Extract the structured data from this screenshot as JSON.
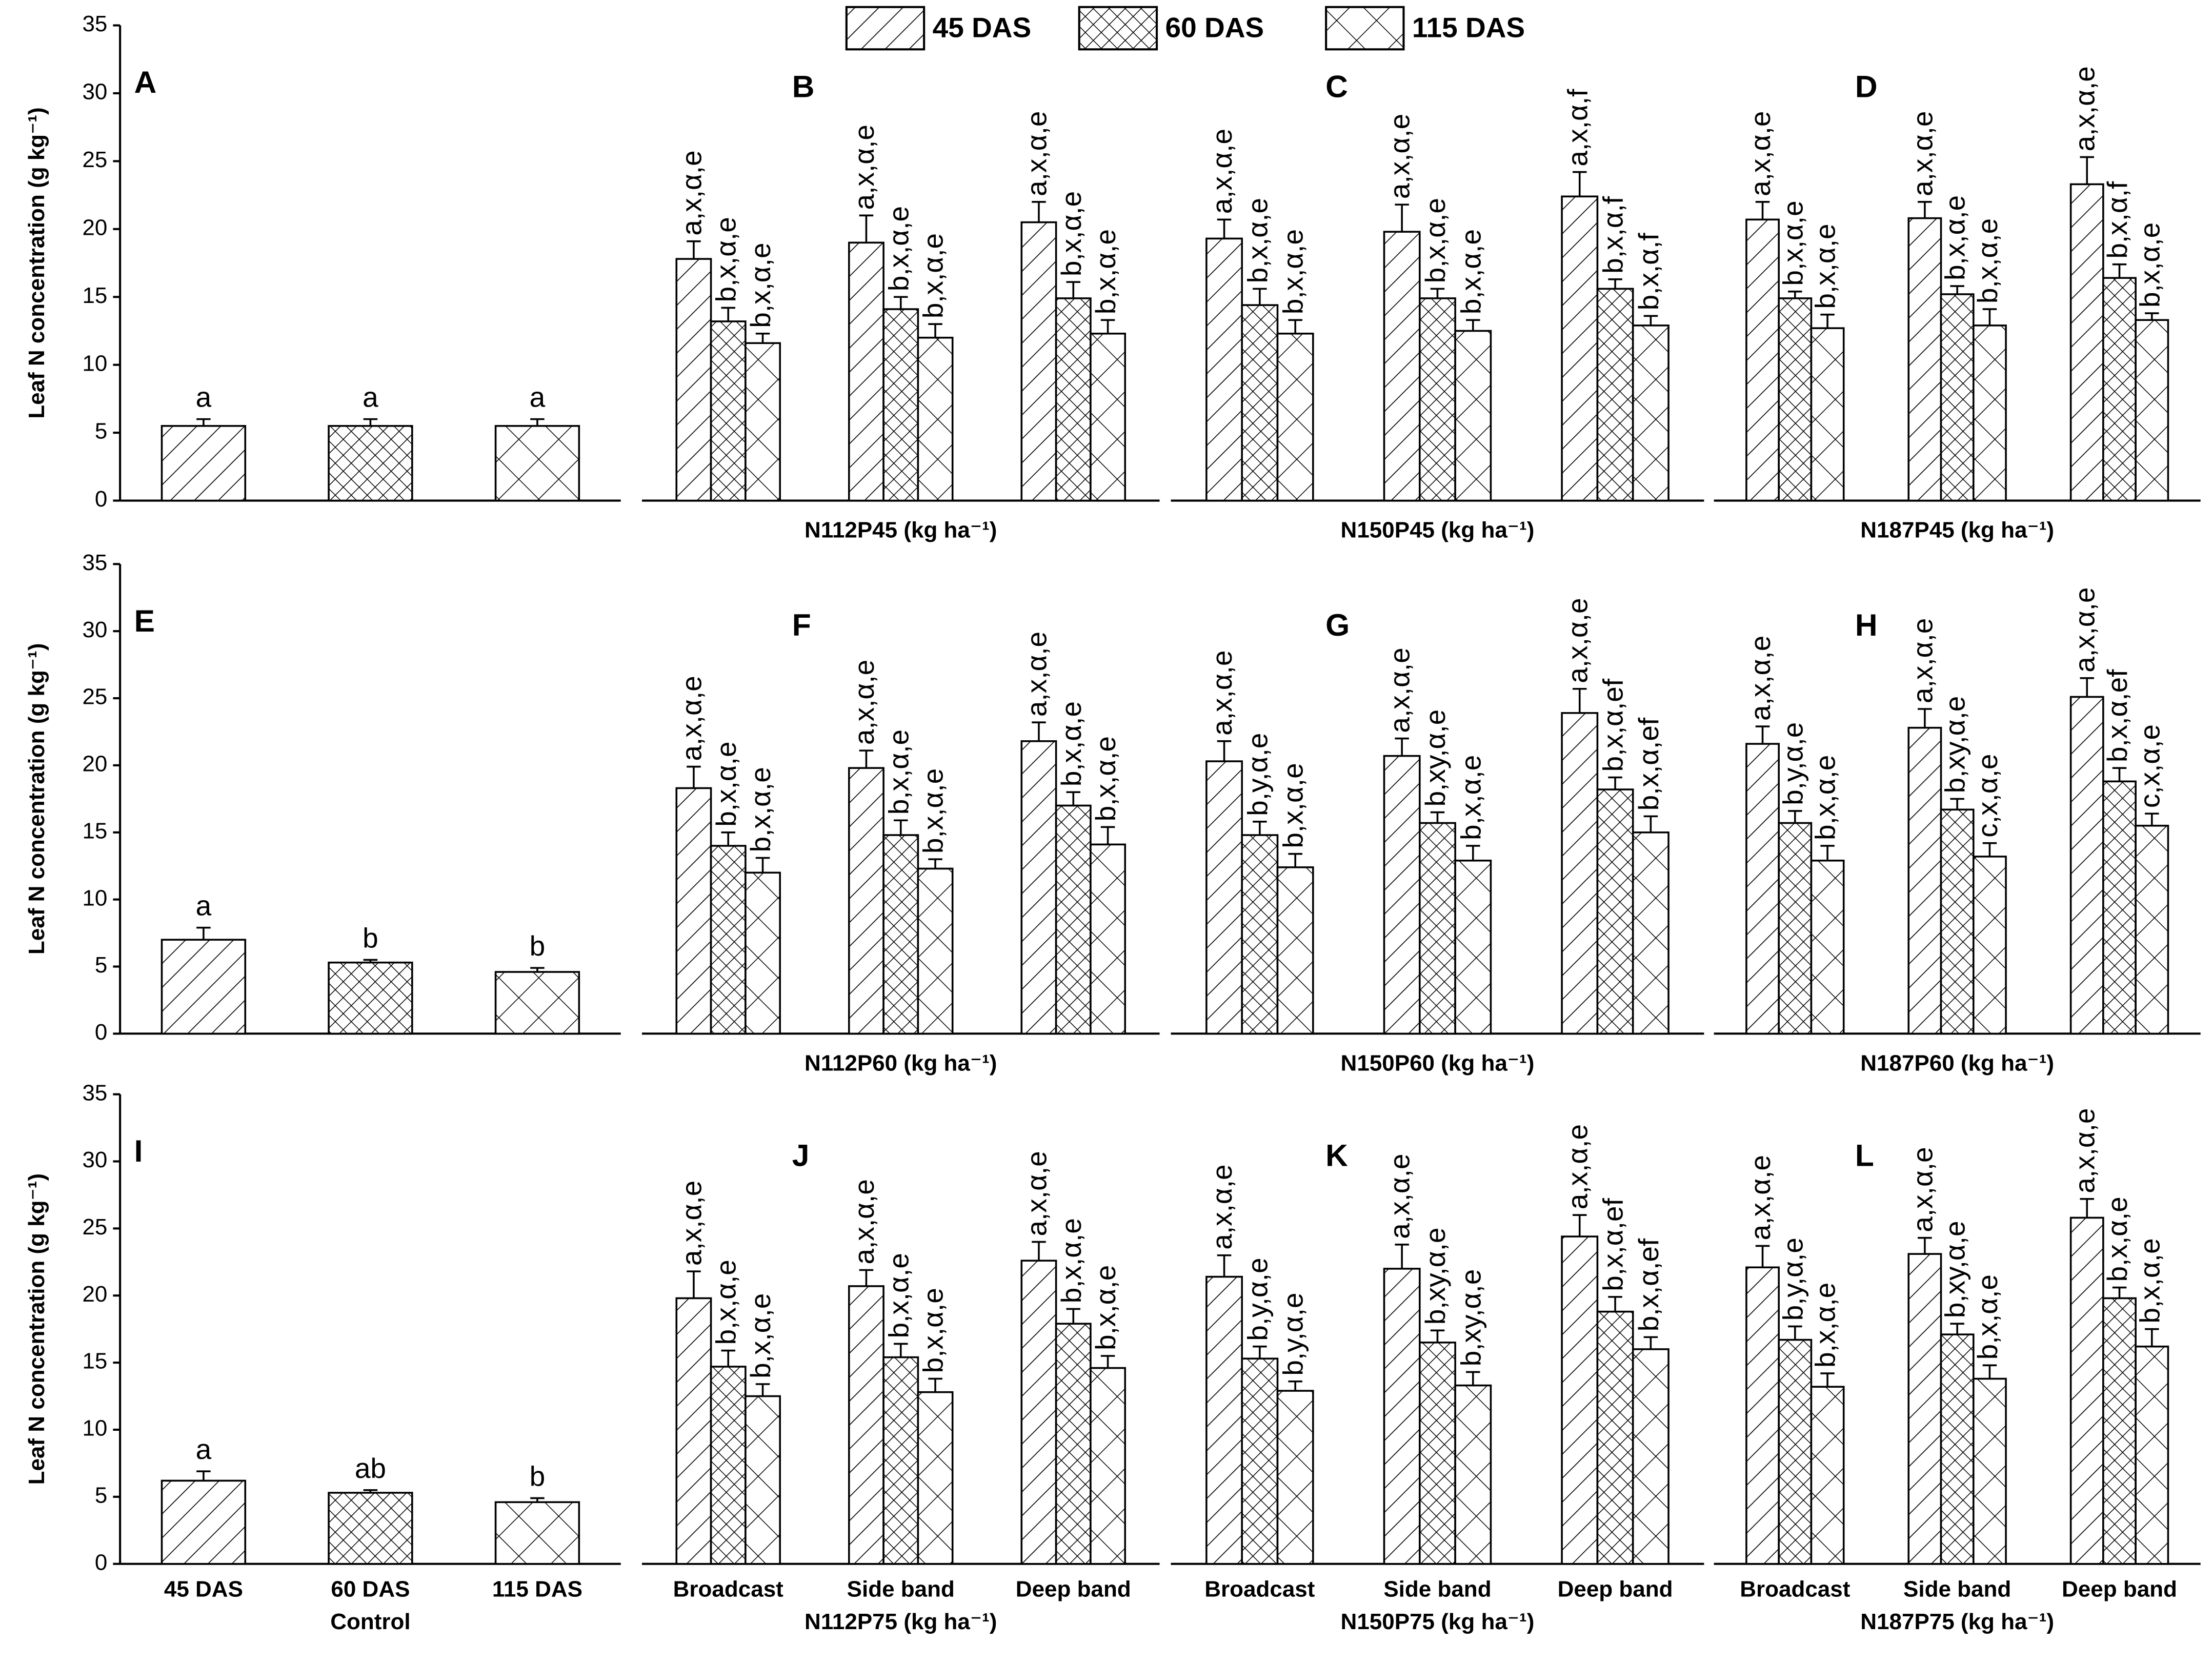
{
  "legend": [
    {
      "name": "45 DAS",
      "pattern": "diagonal"
    },
    {
      "name": "60 DAS",
      "pattern": "crosshatch"
    },
    {
      "name": "115 DAS",
      "pattern": "cross"
    }
  ],
  "chart_data": [
    {
      "type": "bar",
      "panel": "A",
      "ylabel": "Leaf N concentration (g kg⁻¹)",
      "categories": [
        null,
        null,
        null
      ],
      "values": [
        5.5,
        5.5,
        5.5
      ],
      "errors": [
        0.5,
        0.5,
        0.5
      ],
      "patterns": [
        "diagonal",
        "crosshatch",
        "cross"
      ],
      "significance": [
        "a",
        "a",
        "a"
      ],
      "ylim": [
        0,
        35
      ],
      "yticks": [
        0,
        5,
        10,
        15,
        20,
        25,
        30,
        35
      ]
    },
    {
      "type": "grouped_bar",
      "panel": "B",
      "xlabel": "N112P45 (kg ha⁻¹)",
      "categories": [
        null,
        null,
        null
      ],
      "ylim": [
        0,
        35
      ],
      "series": [
        {
          "pattern": "diagonal",
          "values": [
            17.8,
            19.0,
            20.5
          ],
          "errors": [
            1.3,
            2.0,
            1.5
          ],
          "significance": [
            "a,x,α,e",
            "a,x,α,e",
            "a,x,α,e"
          ]
        },
        {
          "pattern": "crosshatch",
          "values": [
            13.2,
            14.1,
            14.9
          ],
          "errors": [
            1.0,
            0.9,
            1.2
          ],
          "significance": [
            "b,x,α,e",
            "b,x,α,e",
            "b,x,α,e"
          ]
        },
        {
          "pattern": "cross",
          "values": [
            11.6,
            12.0,
            12.3
          ],
          "errors": [
            0.7,
            1.0,
            1.0
          ],
          "significance": [
            "b,x,α,e",
            "b,x,α,e",
            "b,x,α,e"
          ]
        }
      ]
    },
    {
      "type": "grouped_bar",
      "panel": "C",
      "xlabel": "N150P45 (kg ha⁻¹)",
      "categories": [
        null,
        null,
        null
      ],
      "ylim": [
        0,
        35
      ],
      "series": [
        {
          "pattern": "diagonal",
          "values": [
            19.3,
            19.8,
            22.4
          ],
          "errors": [
            1.4,
            2.0,
            1.8
          ],
          "significance": [
            "a,x,α,e",
            "a,x,α,e",
            "a,x,α,f"
          ]
        },
        {
          "pattern": "crosshatch",
          "values": [
            14.4,
            14.9,
            15.6
          ],
          "errors": [
            1.2,
            0.7,
            0.7
          ],
          "significance": [
            "b,x,α,e",
            "b,x,α,e",
            "b,x,α,f"
          ]
        },
        {
          "pattern": "cross",
          "values": [
            12.3,
            12.5,
            12.9
          ],
          "errors": [
            1.0,
            0.8,
            0.7
          ],
          "significance": [
            "b,x,α,e",
            "b,x,α,e",
            "b,x,α,f"
          ]
        }
      ]
    },
    {
      "type": "grouped_bar",
      "panel": "D",
      "xlabel": "N187P45 (kg ha⁻¹)",
      "categories": [
        null,
        null,
        null
      ],
      "ylim": [
        0,
        35
      ],
      "series": [
        {
          "pattern": "diagonal",
          "values": [
            20.7,
            20.8,
            23.3
          ],
          "errors": [
            1.3,
            1.2,
            2.0
          ],
          "significance": [
            "a,x,α,e",
            "a,x,α,e",
            "a,x,α,e"
          ]
        },
        {
          "pattern": "crosshatch",
          "values": [
            14.9,
            15.2,
            16.4
          ],
          "errors": [
            0.5,
            0.6,
            1.0
          ],
          "significance": [
            "b,x,α,e",
            "b,x,α,e",
            "b,x,α,f"
          ]
        },
        {
          "pattern": "cross",
          "values": [
            12.7,
            12.9,
            13.3
          ],
          "errors": [
            1.0,
            1.2,
            0.5
          ],
          "significance": [
            "b,x,α,e",
            "b,x,α,e",
            "b,x,α,e"
          ]
        }
      ]
    },
    {
      "type": "bar",
      "panel": "E",
      "ylabel": "Leaf N concentration (g kg⁻¹)",
      "categories": [
        null,
        null,
        null
      ],
      "values": [
        7.0,
        5.3,
        4.6
      ],
      "errors": [
        0.9,
        0.2,
        0.3
      ],
      "patterns": [
        "diagonal",
        "crosshatch",
        "cross"
      ],
      "significance": [
        "a",
        "b",
        "b"
      ],
      "ylim": [
        0,
        35
      ],
      "yticks": [
        0,
        5,
        10,
        15,
        20,
        25,
        30,
        35
      ]
    },
    {
      "type": "grouped_bar",
      "panel": "F",
      "xlabel": "N112P60 (kg ha⁻¹)",
      "categories": [
        null,
        null,
        null
      ],
      "ylim": [
        0,
        35
      ],
      "series": [
        {
          "pattern": "diagonal",
          "values": [
            18.3,
            19.8,
            21.8
          ],
          "errors": [
            1.6,
            1.3,
            1.4
          ],
          "significance": [
            "a,x,α,e",
            "a,x,α,e",
            "a,x,α,e"
          ]
        },
        {
          "pattern": "crosshatch",
          "values": [
            14.0,
            14.8,
            17.0
          ],
          "errors": [
            1.0,
            1.1,
            1.0
          ],
          "significance": [
            "b,x,α,e",
            "b,x,α,e",
            "b,x,α,e"
          ]
        },
        {
          "pattern": "cross",
          "values": [
            12.0,
            12.3,
            14.1
          ],
          "errors": [
            1.1,
            0.7,
            1.3
          ],
          "significance": [
            "b,x,α,e",
            "b,x,α,e",
            "b,x,α,e"
          ]
        }
      ]
    },
    {
      "type": "grouped_bar",
      "panel": "G",
      "xlabel": "N150P60 (kg ha⁻¹)",
      "categories": [
        null,
        null,
        null
      ],
      "ylim": [
        0,
        35
      ],
      "series": [
        {
          "pattern": "diagonal",
          "values": [
            20.3,
            20.7,
            23.9
          ],
          "errors": [
            1.5,
            1.3,
            1.8
          ],
          "significance": [
            "a,x,α,e",
            "a,x,α,e",
            "a,x,α,e"
          ]
        },
        {
          "pattern": "crosshatch",
          "values": [
            14.8,
            15.7,
            18.2
          ],
          "errors": [
            1.0,
            0.8,
            0.9
          ],
          "significance": [
            "b,y,α,e",
            "b,xy,α,e",
            "b,x,α,ef"
          ]
        },
        {
          "pattern": "cross",
          "values": [
            12.4,
            12.9,
            15.0
          ],
          "errors": [
            1.0,
            1.1,
            1.2
          ],
          "significance": [
            "b,x,α,e",
            "b,x,α,e",
            "b,x,α,ef"
          ]
        }
      ]
    },
    {
      "type": "grouped_bar",
      "panel": "H",
      "xlabel": "N187P60 (kg ha⁻¹)",
      "categories": [
        null,
        null,
        null
      ],
      "ylim": [
        0,
        35
      ],
      "series": [
        {
          "pattern": "diagonal",
          "values": [
            21.6,
            22.8,
            25.1
          ],
          "errors": [
            1.3,
            1.4,
            1.4
          ],
          "significance": [
            "a,x,α,e",
            "a,x,α,e",
            "a,x,α,e"
          ]
        },
        {
          "pattern": "crosshatch",
          "values": [
            15.7,
            16.7,
            18.8
          ],
          "errors": [
            0.9,
            0.8,
            1.0
          ],
          "significance": [
            "b,y,α,e",
            "b,xy,α,e",
            "b,x,α,ef"
          ]
        },
        {
          "pattern": "cross",
          "values": [
            12.9,
            13.2,
            15.5
          ],
          "errors": [
            1.1,
            1.0,
            0.9
          ],
          "significance": [
            "b,x,α,e",
            "c,x,α,e",
            "c,x,α,e"
          ]
        }
      ]
    },
    {
      "type": "bar",
      "panel": "I",
      "ylabel": "Leaf N concentration (g kg⁻¹)",
      "xlabel": "Control",
      "categories": [
        "45 DAS",
        "60 DAS",
        "115 DAS"
      ],
      "values": [
        6.2,
        5.3,
        4.6
      ],
      "errors": [
        0.7,
        0.2,
        0.3
      ],
      "patterns": [
        "diagonal",
        "crosshatch",
        "cross"
      ],
      "significance": [
        "a",
        "ab",
        "b"
      ],
      "ylim": [
        0,
        35
      ],
      "yticks": [
        0,
        5,
        10,
        15,
        20,
        25,
        30,
        35
      ]
    },
    {
      "type": "grouped_bar",
      "panel": "J",
      "xlabel": "N112P75 (kg ha⁻¹)",
      "categories": [
        "Broadcast",
        "Side band",
        "Deep band"
      ],
      "ylim": [
        0,
        35
      ],
      "series": [
        {
          "pattern": "diagonal",
          "values": [
            19.8,
            20.7,
            22.6
          ],
          "errors": [
            2.0,
            1.2,
            1.4
          ],
          "significance": [
            "a,x,α,e",
            "a,x,α,e",
            "a,x,α,e"
          ]
        },
        {
          "pattern": "crosshatch",
          "values": [
            14.7,
            15.4,
            17.9
          ],
          "errors": [
            1.2,
            1.0,
            1.1
          ],
          "significance": [
            "b,x,α,e",
            "b,x,α,e",
            "b,x,α,e"
          ]
        },
        {
          "pattern": "cross",
          "values": [
            12.5,
            12.8,
            14.6
          ],
          "errors": [
            0.9,
            1.0,
            0.9
          ],
          "significance": [
            "b,x,α,e",
            "b,x,α,e",
            "b,x,α,e"
          ]
        }
      ]
    },
    {
      "type": "grouped_bar",
      "panel": "K",
      "xlabel": "N150P75 (kg ha⁻¹)",
      "categories": [
        "Broadcast",
        "Side band",
        "Deep band"
      ],
      "ylim": [
        0,
        35
      ],
      "series": [
        {
          "pattern": "diagonal",
          "values": [
            21.4,
            22.0,
            24.4
          ],
          "errors": [
            1.6,
            1.8,
            1.6
          ],
          "significance": [
            "a,x,α,e",
            "a,x,α,e",
            "a,x,α,e"
          ]
        },
        {
          "pattern": "crosshatch",
          "values": [
            15.3,
            16.5,
            18.8
          ],
          "errors": [
            0.9,
            0.9,
            1.1
          ],
          "significance": [
            "b,y,α,e",
            "b,xy,α,e",
            "b,x,α,ef"
          ]
        },
        {
          "pattern": "cross",
          "values": [
            12.9,
            13.3,
            16.0
          ],
          "errors": [
            0.7,
            1.0,
            0.9
          ],
          "significance": [
            "b,y,α,e",
            "b,xy,α,e",
            "b,x,α,ef"
          ]
        }
      ]
    },
    {
      "type": "grouped_bar",
      "panel": "L",
      "xlabel": "N187P75 (kg ha⁻¹)",
      "categories": [
        "Broadcast",
        "Side band",
        "Deep band"
      ],
      "ylim": [
        0,
        35
      ],
      "series": [
        {
          "pattern": "diagonal",
          "values": [
            22.1,
            23.1,
            25.8
          ],
          "errors": [
            1.6,
            1.2,
            1.4
          ],
          "significance": [
            "a,x,α,e",
            "a,x,α,e",
            "a,x,α,e"
          ]
        },
        {
          "pattern": "crosshatch",
          "values": [
            16.7,
            17.1,
            19.8
          ],
          "errors": [
            1.0,
            0.8,
            0.8
          ],
          "significance": [
            "b,y,α,e",
            "b,xy,α,e",
            "b,x,α,e"
          ]
        },
        {
          "pattern": "cross",
          "values": [
            13.2,
            13.8,
            16.2
          ],
          "errors": [
            1.0,
            1.0,
            1.3
          ],
          "significance": [
            "b,x,α,e",
            "b,x,α,e",
            "b,x,α,e"
          ]
        }
      ]
    }
  ]
}
